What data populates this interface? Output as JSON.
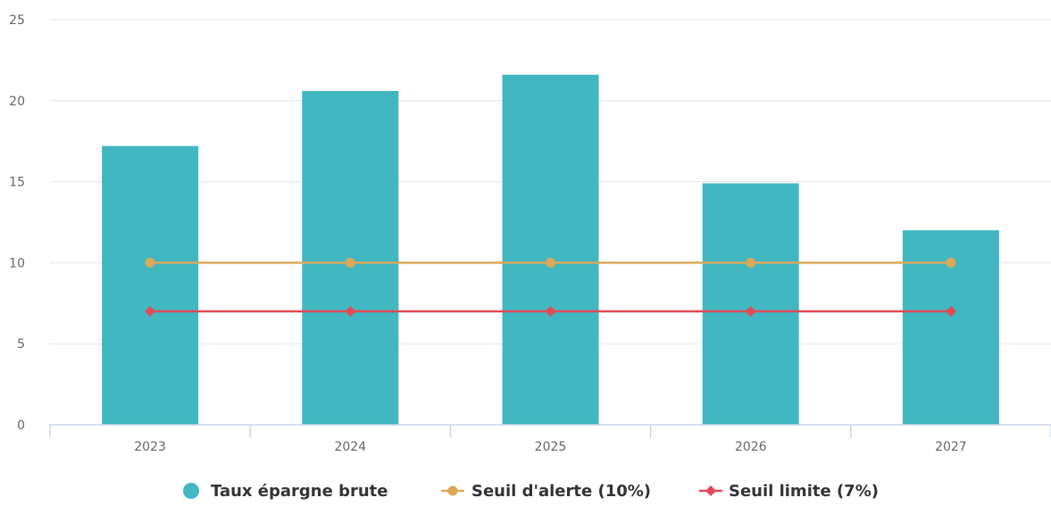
{
  "chart_data": {
    "type": "bar",
    "categories": [
      "2023",
      "2024",
      "2025",
      "2026",
      "2027"
    ],
    "ylim": [
      0,
      25
    ],
    "yticks": [
      0,
      5,
      10,
      15,
      20,
      25
    ],
    "grid": true,
    "legend_position": "bottom-center",
    "series": [
      {
        "name": "Taux épargne brute",
        "kind": "bar",
        "color": "#40b7c1",
        "values": [
          17.2,
          20.6,
          21.6,
          14.9,
          12.0
        ]
      },
      {
        "name": "Seuil d'alerte (10%)",
        "kind": "line",
        "marker": "circle",
        "color": "#dba85a",
        "values": [
          10,
          10,
          10,
          10,
          10
        ]
      },
      {
        "name": "Seuil limite (7%)",
        "kind": "line",
        "marker": "diamond",
        "color": "#e04a55",
        "values": [
          7,
          7,
          7,
          7,
          7
        ]
      }
    ]
  }
}
